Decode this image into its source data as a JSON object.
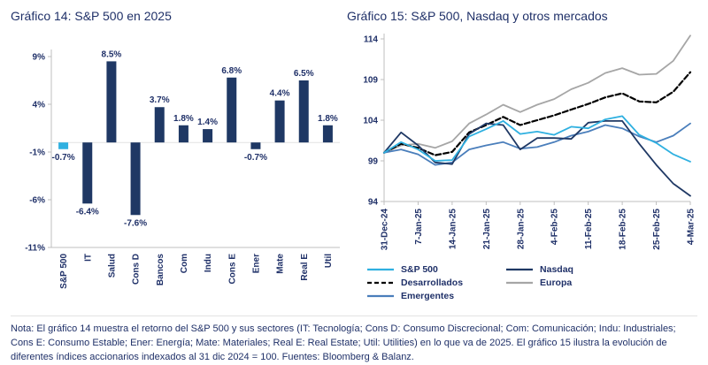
{
  "theme": {
    "title_color": "#1f3068",
    "text_color": "#1f3068",
    "axis_color": "#bfbfbf",
    "background": "#ffffff"
  },
  "chart_data": [
    {
      "type": "bar",
      "title": "Gráfico 14: S&P 500 en 2025",
      "categories": [
        "S&P 500",
        "IT",
        "Salud",
        "Cons D",
        "Bancos",
        "Com",
        "Indu",
        "Cons E",
        "Ener",
        "Mate",
        "Real E",
        "Util"
      ],
      "values": [
        -0.7,
        -6.4,
        8.5,
        -7.6,
        3.7,
        1.8,
        1.4,
        6.8,
        -0.7,
        4.4,
        6.5,
        1.8
      ],
      "value_labels": [
        "-0.7%",
        "-6.4%",
        "8.5%",
        "-7.6%",
        "3.7%",
        "1.8%",
        "1.4%",
        "6.8%",
        "-0.7%",
        "4.4%",
        "6.5%",
        "1.8%"
      ],
      "ylim": [
        -11,
        9
      ],
      "yticks": [
        9,
        4,
        -1,
        -6,
        -11
      ],
      "ytick_labels": [
        "9%",
        "4%",
        "-1%",
        "-6%",
        "-11%"
      ],
      "bar_color": "#1f3864",
      "highlight_category": "S&P 500",
      "highlight_color": "#2fb0e0",
      "grid": false,
      "legend": "none",
      "xlabel": "",
      "ylabel": ""
    },
    {
      "type": "line",
      "title": "Gráfico 15: S&P 500, Nasdaq y otros mercados",
      "x_tick_labels": [
        "31-Dec-24",
        "7-Jan-25",
        "14-Jan-25",
        "21-Jan-25",
        "28-Jan-25",
        "4-Feb-25",
        "11-Feb-25",
        "18-Feb-25",
        "25-Feb-25",
        "4-Mar-25"
      ],
      "points_per_tick": 2,
      "ylim": [
        94,
        114
      ],
      "yticks": [
        114,
        109,
        104,
        99,
        94
      ],
      "ytick_labels": [
        "114",
        "109",
        "104",
        "99",
        "94"
      ],
      "grid": false,
      "legend_position": "bottom",
      "series": [
        {
          "name": "Europa",
          "color": "#a6a6a6",
          "style": "solid",
          "values": [
            100,
            100.9,
            101.1,
            100.6,
            101.4,
            103.6,
            104.7,
            105.9,
            105.0,
            105.9,
            106.6,
            107.8,
            108.6,
            109.8,
            110.4,
            109.6,
            109.7,
            111.3,
            114.4
          ]
        },
        {
          "name": "Desarrollados",
          "color": "#000000",
          "style": "dashed",
          "values": [
            100,
            101.1,
            100.6,
            99.7,
            100.1,
            102.5,
            103.4,
            104.4,
            103.4,
            104.0,
            104.6,
            105.3,
            106.0,
            106.8,
            107.3,
            106.3,
            106.2,
            107.5,
            109.9
          ]
        },
        {
          "name": "Emergentes",
          "color": "#4a7ebb",
          "style": "solid",
          "values": [
            100,
            100.4,
            99.8,
            98.5,
            98.8,
            100.4,
            100.9,
            101.3,
            100.5,
            100.7,
            101.3,
            102.1,
            102.6,
            103.4,
            103.0,
            102.0,
            101.3,
            102.1,
            103.6
          ]
        },
        {
          "name": "Nasdaq",
          "color": "#1f3864",
          "style": "solid",
          "values": [
            100,
            102.5,
            100.9,
            98.8,
            98.6,
            102.3,
            103.6,
            103.4,
            100.4,
            101.8,
            101.8,
            101.7,
            103.7,
            103.9,
            103.9,
            101.1,
            98.5,
            96.2,
            94.7
          ]
        },
        {
          "name": "S&P 500",
          "color": "#2fb0e0",
          "style": "solid",
          "values": [
            100,
            101.3,
            100.4,
            99.0,
            99.1,
            102.0,
            102.9,
            103.9,
            102.3,
            102.6,
            102.2,
            103.2,
            103.0,
            104.1,
            104.5,
            102.2,
            101.2,
            99.8,
            98.9
          ]
        }
      ],
      "legend_columns": [
        [
          "S&P 500",
          "Desarrollados",
          "Emergentes"
        ],
        [
          "Nasdaq",
          "Europa"
        ]
      ]
    }
  ],
  "note": "Nota: El gráfico 14 muestra el retorno del S&P 500 y sus sectores (IT: Tecnología; Cons D: Consumo Discrecional; Com: Comunicación; Indu: Industriales; Cons E: Consumo Estable; Ener: Energía; Mate: Materiales; Real E: Real Estate; Util: Utilities) en lo que va de 2025. El gráfico 15 ilustra la evolución de diferentes índices accionarios indexados al 31 dic 2024 = 100. Fuentes: Bloomberg & Balanz."
}
